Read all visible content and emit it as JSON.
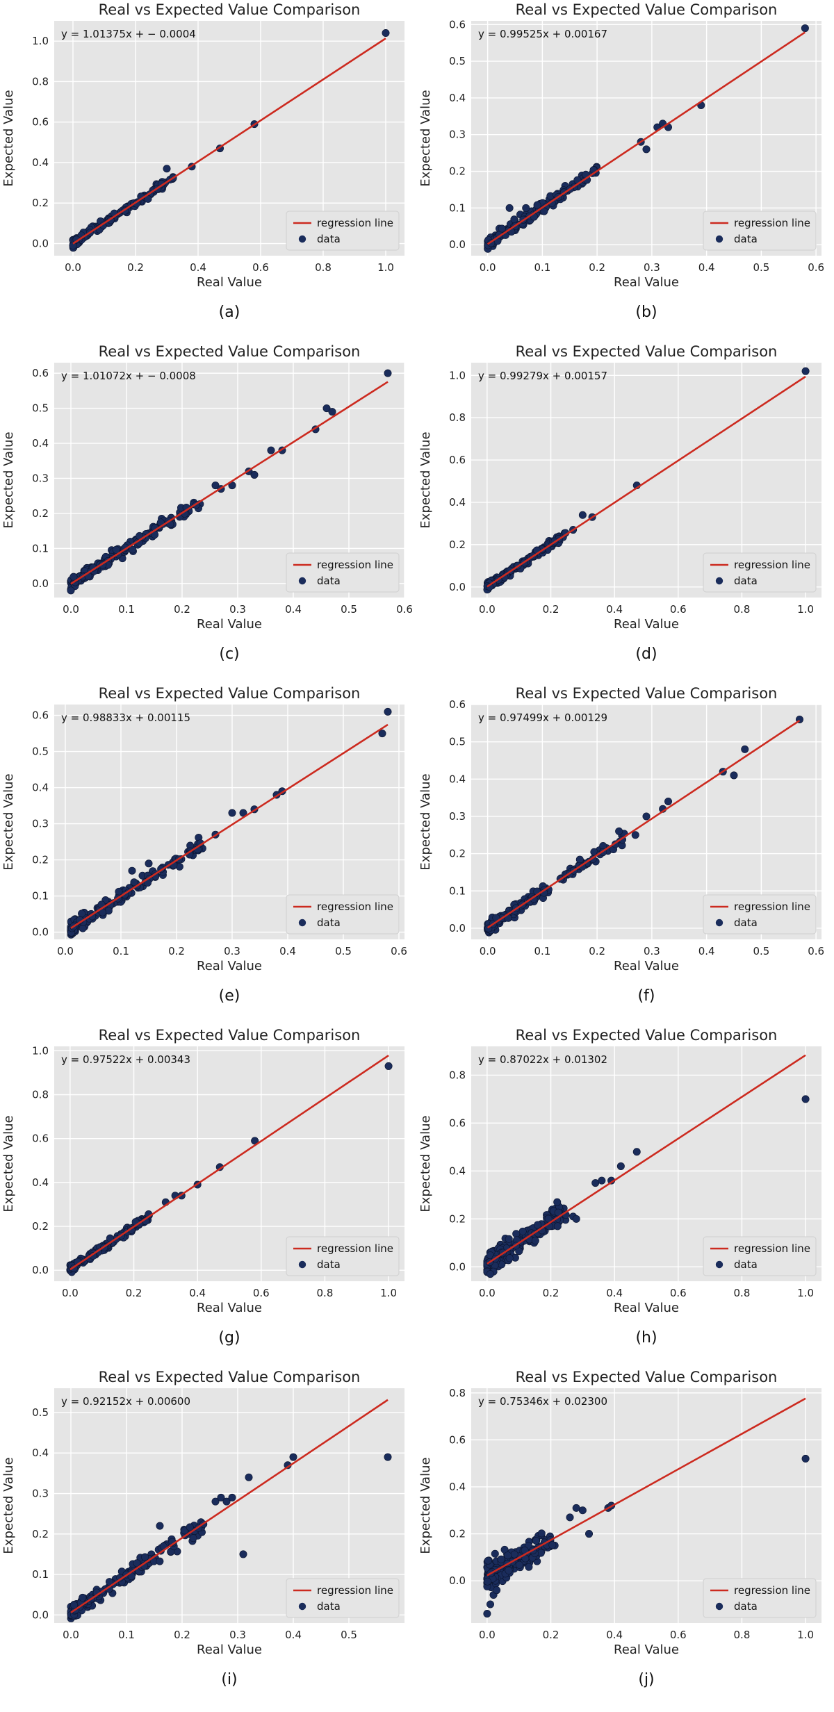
{
  "theme": {
    "plot_bg": "#e5e5e5",
    "grid_color": "#ffffff",
    "line_color": "#cc2a1f",
    "point_color": "#1a2c5b",
    "text_color": "#222222"
  },
  "legend_labels": {
    "line": "regression line",
    "points": "data"
  },
  "chart_data": [
    {
      "id": "a",
      "caption": "(a)",
      "type": "scatter",
      "title": "Real vs Expected Value Comparison",
      "xlabel": "Real Value",
      "ylabel": "Expected Value",
      "equation": "y = 1.01375x + − 0.0004",
      "slope": 1.01375,
      "intercept": -0.0004,
      "xlim": [
        -0.06,
        1.06
      ],
      "ylim": [
        -0.06,
        1.1
      ],
      "xticks": [
        "0.0",
        "0.2",
        "0.4",
        "0.6",
        "0.8",
        "1.0"
      ],
      "yticks": [
        "0.0",
        "0.2",
        "0.4",
        "0.6",
        "0.8",
        "1.0"
      ],
      "grid": true,
      "legend": "bottom-right",
      "line_range": [
        0,
        1.0
      ],
      "cloud": {
        "xmax": 0.32,
        "spread": 0.015,
        "n": 150
      },
      "points": [
        [
          0.3,
          0.37
        ],
        [
          0.38,
          0.38
        ],
        [
          0.47,
          0.47
        ],
        [
          0.58,
          0.59
        ],
        [
          1.0,
          1.04
        ],
        [
          0.27,
          0.27
        ],
        [
          0.24,
          0.22
        ]
      ]
    },
    {
      "id": "b",
      "caption": "(b)",
      "type": "scatter",
      "title": "Real vs Expected Value Comparison",
      "xlabel": "Real Value",
      "ylabel": "Expected Value",
      "equation": "y = 0.99525x + 0.00167",
      "slope": 0.99525,
      "intercept": 0.00167,
      "xlim": [
        -0.03,
        0.61
      ],
      "ylim": [
        -0.03,
        0.61
      ],
      "xticks": [
        "0.0",
        "0.1",
        "0.2",
        "0.3",
        "0.4",
        "0.5",
        "0.6"
      ],
      "yticks": [
        "0.0",
        "0.1",
        "0.2",
        "0.3",
        "0.4",
        "0.5",
        "0.6"
      ],
      "grid": true,
      "legend": "bottom-right",
      "line_range": [
        0,
        0.58
      ],
      "cloud": {
        "xmax": 0.2,
        "spread": 0.012,
        "n": 150
      },
      "points": [
        [
          0.29,
          0.26
        ],
        [
          0.31,
          0.32
        ],
        [
          0.32,
          0.33
        ],
        [
          0.33,
          0.32
        ],
        [
          0.28,
          0.28
        ],
        [
          0.39,
          0.38
        ],
        [
          0.58,
          0.59
        ],
        [
          0.04,
          0.1
        ],
        [
          0.07,
          0.1
        ]
      ]
    },
    {
      "id": "c",
      "caption": "(c)",
      "type": "scatter",
      "title": "Real vs Expected Value Comparison",
      "xlabel": "Real Value",
      "ylabel": "Expected Value",
      "equation": "y = 1.01072x + − 0.0008",
      "slope": 1.01072,
      "intercept": -0.0008,
      "xlim": [
        -0.03,
        0.6
      ],
      "ylim": [
        -0.04,
        0.63
      ],
      "xticks": [
        "0.0",
        "0.1",
        "0.2",
        "0.3",
        "0.4",
        "0.5",
        "0.6"
      ],
      "yticks": [
        "0.0",
        "0.1",
        "0.2",
        "0.3",
        "0.4",
        "0.5",
        "0.6"
      ],
      "grid": true,
      "legend": "bottom-right",
      "line_range": [
        0,
        0.57
      ],
      "cloud": {
        "xmax": 0.24,
        "spread": 0.012,
        "n": 170
      },
      "points": [
        [
          0.26,
          0.28
        ],
        [
          0.27,
          0.27
        ],
        [
          0.29,
          0.28
        ],
        [
          0.32,
          0.32
        ],
        [
          0.33,
          0.31
        ],
        [
          0.36,
          0.38
        ],
        [
          0.38,
          0.38
        ],
        [
          0.44,
          0.44
        ],
        [
          0.46,
          0.5
        ],
        [
          0.47,
          0.49
        ],
        [
          0.57,
          0.6
        ],
        [
          0.0,
          -0.02
        ]
      ]
    },
    {
      "id": "d",
      "caption": "(d)",
      "type": "scatter",
      "title": "Real vs Expected Value Comparison",
      "xlabel": "Real Value",
      "ylabel": "Expected Value",
      "equation": "y = 0.99279x + 0.00157",
      "slope": 0.99279,
      "intercept": 0.00157,
      "xlim": [
        -0.05,
        1.05
      ],
      "ylim": [
        -0.05,
        1.06
      ],
      "xticks": [
        "0.0",
        "0.2",
        "0.4",
        "0.6",
        "0.8",
        "1.0"
      ],
      "yticks": [
        "0.0",
        "0.2",
        "0.4",
        "0.6",
        "0.8",
        "1.0"
      ],
      "grid": true,
      "legend": "bottom-right",
      "line_range": [
        0,
        1.0
      ],
      "cloud": {
        "xmax": 0.25,
        "spread": 0.012,
        "n": 150
      },
      "points": [
        [
          0.3,
          0.34
        ],
        [
          0.33,
          0.33
        ],
        [
          0.47,
          0.48
        ],
        [
          1.0,
          1.02
        ],
        [
          0.27,
          0.27
        ]
      ]
    },
    {
      "id": "e",
      "caption": "(e)",
      "type": "scatter",
      "title": "Real vs Expected Value Comparison",
      "xlabel": "Real Value",
      "ylabel": "Expected Value",
      "equation": "y = 0.98833x + 0.00115",
      "slope": 0.98833,
      "intercept": 0.00115,
      "xlim": [
        -0.02,
        0.61
      ],
      "ylim": [
        -0.02,
        0.63
      ],
      "xticks": [
        "0.0",
        "0.1",
        "0.2",
        "0.3",
        "0.4",
        "0.5",
        "0.6"
      ],
      "yticks": [
        "0.0",
        "0.1",
        "0.2",
        "0.3",
        "0.4",
        "0.5",
        "0.6"
      ],
      "grid": true,
      "legend": "bottom-right",
      "line_range": [
        0.01,
        0.58
      ],
      "cloud": {
        "xmax": 0.25,
        "spread": 0.014,
        "n": 170,
        "xmin": 0.01
      },
      "points": [
        [
          0.27,
          0.27
        ],
        [
          0.3,
          0.33
        ],
        [
          0.32,
          0.33
        ],
        [
          0.34,
          0.34
        ],
        [
          0.38,
          0.38
        ],
        [
          0.39,
          0.39
        ],
        [
          0.57,
          0.55
        ],
        [
          0.58,
          0.61
        ],
        [
          0.15,
          0.19
        ],
        [
          0.12,
          0.17
        ]
      ]
    },
    {
      "id": "f",
      "caption": "(f)",
      "type": "scatter",
      "title": "Real vs Expected Value Comparison",
      "xlabel": "Real Value",
      "ylabel": "Expected Value",
      "equation": "y = 0.97499x + 0.00129",
      "slope": 0.97499,
      "intercept": 0.00129,
      "xlim": [
        -0.03,
        0.61
      ],
      "ylim": [
        -0.03,
        0.6
      ],
      "xticks": [
        "0.0",
        "0.1",
        "0.2",
        "0.3",
        "0.4",
        "0.5",
        "0.6"
      ],
      "yticks": [
        "0.0",
        "0.1",
        "0.2",
        "0.3",
        "0.4",
        "0.5",
        "0.6"
      ],
      "grid": true,
      "legend": "bottom-right",
      "line_range": [
        0,
        0.57
      ],
      "cloud": {
        "xmax": 0.25,
        "spread": 0.012,
        "n": 170
      },
      "points": [
        [
          0.27,
          0.25
        ],
        [
          0.29,
          0.3
        ],
        [
          0.32,
          0.32
        ],
        [
          0.33,
          0.34
        ],
        [
          0.43,
          0.42
        ],
        [
          0.45,
          0.41
        ],
        [
          0.47,
          0.48
        ],
        [
          0.57,
          0.56
        ],
        [
          0.24,
          0.26
        ]
      ]
    },
    {
      "id": "g",
      "caption": "(g)",
      "type": "scatter",
      "title": "Real vs Expected Value Comparison",
      "xlabel": "Real Value",
      "ylabel": "Expected Value",
      "equation": "y = 0.97522x + 0.00343",
      "slope": 0.97522,
      "intercept": 0.00343,
      "xlim": [
        -0.05,
        1.05
      ],
      "ylim": [
        -0.05,
        1.02
      ],
      "xticks": [
        "0.0",
        "0.2",
        "0.4",
        "0.6",
        "0.8",
        "1.0"
      ],
      "yticks": [
        "0.0",
        "0.2",
        "0.4",
        "0.6",
        "0.8",
        "1.0"
      ],
      "grid": true,
      "legend": "bottom-right",
      "line_range": [
        0,
        1.0
      ],
      "cloud": {
        "xmax": 0.25,
        "spread": 0.012,
        "n": 150
      },
      "points": [
        [
          0.3,
          0.31
        ],
        [
          0.33,
          0.34
        ],
        [
          0.4,
          0.39
        ],
        [
          0.47,
          0.47
        ],
        [
          0.58,
          0.59
        ],
        [
          1.0,
          0.93
        ],
        [
          0.35,
          0.34
        ]
      ]
    },
    {
      "id": "h",
      "caption": "(h)",
      "type": "scatter",
      "title": "Real vs Expected Value Comparison",
      "xlabel": "Real Value",
      "ylabel": "Expected Value",
      "equation": "y = 0.87022x + 0.01302",
      "slope": 0.87022,
      "intercept": 0.01302,
      "xlim": [
        -0.05,
        1.05
      ],
      "ylim": [
        -0.06,
        0.92
      ],
      "xticks": [
        "0.0",
        "0.2",
        "0.4",
        "0.6",
        "0.8",
        "1.0"
      ],
      "yticks": [
        "0.0",
        "0.2",
        "0.4",
        "0.6",
        "0.8"
      ],
      "grid": true,
      "legend": "bottom-right",
      "line_range": [
        0,
        1.0
      ],
      "cloud": {
        "xmax": 0.25,
        "spread": 0.035,
        "n": 190
      },
      "points": [
        [
          0.27,
          0.21
        ],
        [
          0.28,
          0.2
        ],
        [
          0.34,
          0.35
        ],
        [
          0.36,
          0.36
        ],
        [
          0.39,
          0.36
        ],
        [
          0.42,
          0.42
        ],
        [
          0.47,
          0.48
        ],
        [
          1.0,
          0.7
        ],
        [
          0.02,
          -0.02
        ],
        [
          0.01,
          -0.03
        ],
        [
          0.22,
          0.27
        ]
      ]
    },
    {
      "id": "i",
      "caption": "(i)",
      "type": "scatter",
      "title": "Real vs Expected Value Comparison",
      "xlabel": "Real Value",
      "ylabel": "Expected Value",
      "equation": "y = 0.92152x + 0.00600",
      "slope": 0.92152,
      "intercept": 0.006,
      "xlim": [
        -0.03,
        0.6
      ],
      "ylim": [
        -0.02,
        0.56
      ],
      "xticks": [
        "0.0",
        "0.1",
        "0.2",
        "0.3",
        "0.4",
        "0.5"
      ],
      "yticks": [
        "0.0",
        "0.1",
        "0.2",
        "0.3",
        "0.4",
        "0.5"
      ],
      "grid": true,
      "legend": "bottom-right",
      "line_range": [
        0,
        0.57
      ],
      "cloud": {
        "xmax": 0.24,
        "spread": 0.014,
        "n": 180
      },
      "points": [
        [
          0.26,
          0.28
        ],
        [
          0.27,
          0.29
        ],
        [
          0.28,
          0.28
        ],
        [
          0.29,
          0.29
        ],
        [
          0.31,
          0.15
        ],
        [
          0.32,
          0.34
        ],
        [
          0.39,
          0.37
        ],
        [
          0.4,
          0.39
        ],
        [
          0.57,
          0.39
        ],
        [
          0.16,
          0.22
        ],
        [
          0.22,
          0.19
        ]
      ]
    },
    {
      "id": "j",
      "caption": "(j)",
      "type": "scatter",
      "title": "Real vs Expected Value Comparison",
      "xlabel": "Real Value",
      "ylabel": "Expected Value",
      "equation": "y = 0.75346x + 0.02300",
      "slope": 0.75346,
      "intercept": 0.023,
      "xlim": [
        -0.05,
        1.05
      ],
      "ylim": [
        -0.18,
        0.82
      ],
      "xticks": [
        "0.0",
        "0.2",
        "0.4",
        "0.6",
        "0.8",
        "1.0"
      ],
      "yticks": [
        "0.0",
        "0.2",
        "0.4",
        "0.6",
        "0.8"
      ],
      "grid": true,
      "legend": "bottom-right",
      "line_range": [
        0,
        1.0
      ],
      "cloud": {
        "xmax": 0.22,
        "spread": 0.04,
        "n": 190
      },
      "points": [
        [
          0.26,
          0.27
        ],
        [
          0.28,
          0.31
        ],
        [
          0.3,
          0.3
        ],
        [
          0.32,
          0.2
        ],
        [
          0.38,
          0.31
        ],
        [
          0.39,
          0.32
        ],
        [
          1.0,
          0.52
        ],
        [
          0.0,
          -0.14
        ],
        [
          0.01,
          -0.1
        ],
        [
          0.02,
          -0.06
        ],
        [
          0.03,
          -0.04
        ]
      ]
    }
  ]
}
